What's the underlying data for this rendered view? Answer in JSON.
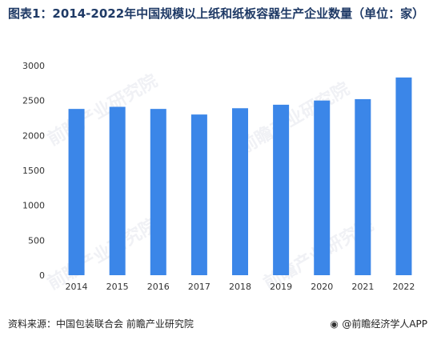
{
  "title": "图表1：2014-2022年中国规模以上纸和纸板容器生产企业数量（单位：家）",
  "footer": {
    "source": "资料来源：中国包装联合会 前瞻产业研究院",
    "brand": "@前瞻经济学人APP"
  },
  "watermark": {
    "text": "前瞻产业研究院"
  },
  "colors": {
    "bar": "#3b86e8",
    "title": "#1f3a66"
  },
  "chart_data": {
    "type": "bar",
    "categories": [
      "2014",
      "2015",
      "2016",
      "2017",
      "2018",
      "2019",
      "2020",
      "2021",
      "2022"
    ],
    "values": [
      2380,
      2410,
      2380,
      2300,
      2390,
      2440,
      2500,
      2520,
      2830
    ],
    "ylim": [
      0,
      3000
    ],
    "yticks": [
      0,
      500,
      1000,
      1500,
      2000,
      2500,
      3000
    ],
    "grid": false,
    "legend": "none"
  }
}
